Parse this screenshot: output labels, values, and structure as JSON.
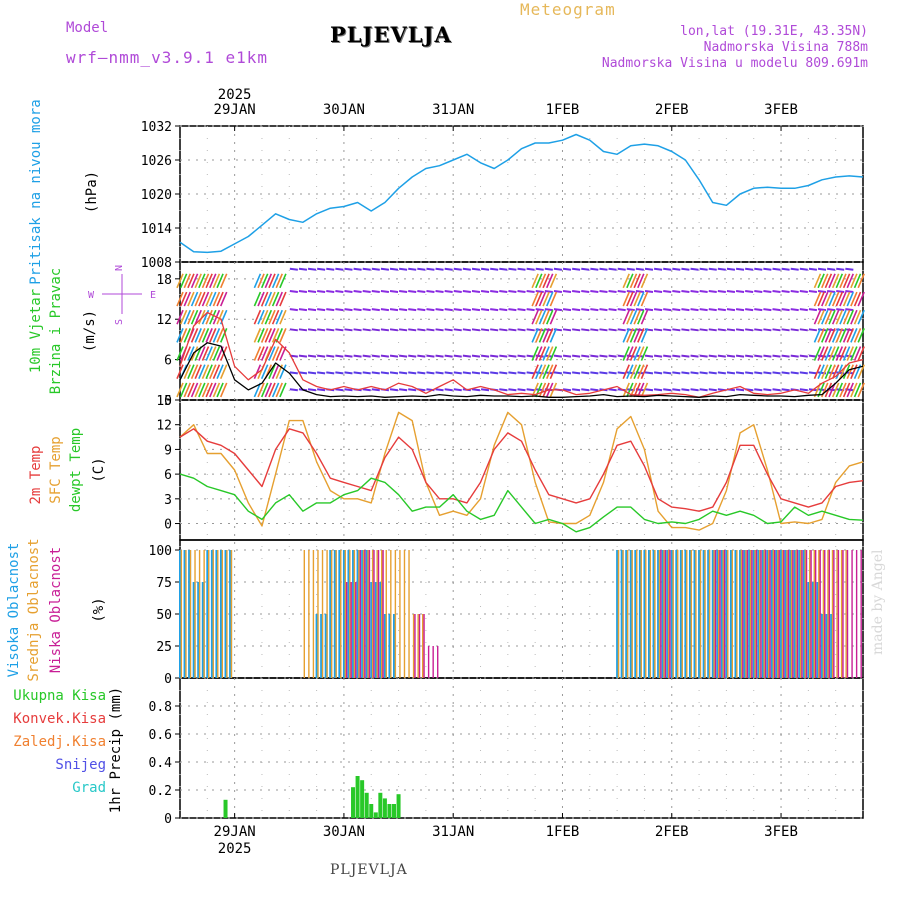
{
  "header": {
    "model_label": "Model",
    "model_name": "wrf–nmm_v3.9.1 e1km",
    "title": "PLJEVLJA",
    "product": "Meteogram",
    "lonlat": "lon,lat (19.31E, 43.35N)",
    "elevation": "Nadmorska Visina 788m",
    "model_elevation": "Nadmorska Visina u modelu 809.691m"
  },
  "footer": {
    "city": "PLJEVLJA",
    "credit": "made by Angel"
  },
  "colors": {
    "pressure": "#1ea0e6",
    "temp2m": "#e63c3c",
    "sfc": "#e6a030",
    "dewpt": "#28c828",
    "high_cloud": "#1ea0e6",
    "mid_cloud": "#e6a030",
    "low_cloud": "#c81e96",
    "precip": "#28c828",
    "wind_speed": "#000000",
    "gust": "#e63c3c",
    "header_purple": "#b04ad8",
    "header_orange": "#e6b85a"
  },
  "time_axis": {
    "year": "2025",
    "days": [
      "29JAN",
      "30JAN",
      "31JAN",
      "1FEB",
      "2FEB",
      "3FEB"
    ],
    "start_hour": 0,
    "end_hour": 150,
    "day_marks_hours": [
      12,
      36,
      60,
      84,
      108,
      132
    ]
  },
  "panels": {
    "pressure": {
      "ylabel_name": "Pritisak na nivou mora",
      "ylabel_unit": "(hPa)",
      "ticks": [
        "1008",
        "1014",
        "1020",
        "1026",
        "1032"
      ],
      "ylim": [
        1008,
        1032
      ]
    },
    "wind": {
      "ylabel_name1": "10m Vjetar",
      "ylabel_name2": "Brzina i Pravac",
      "ylabel_unit": "(m/s)",
      "ticks": [
        "0",
        "6",
        "12",
        "18"
      ],
      "ylim": [
        0,
        20.5
      ],
      "compass": {
        "n": "N",
        "s": "S",
        "w": "W",
        "e": "E"
      }
    },
    "temperature": {
      "ylabel_2m": "2m Temp",
      "ylabel_sfc": "SFC Temp",
      "ylabel_dew": "dewpt Temp",
      "ylabel_unit": "(C)",
      "ticks": [
        "0",
        "3",
        "6",
        "9",
        "12",
        "15"
      ],
      "ylim": [
        -2,
        15
      ]
    },
    "clouds": {
      "ylabel_high": "Visoka Oblacnost",
      "ylabel_mid": "Srednja Oblacnost",
      "ylabel_low": "Niska Oblacnost",
      "ylabel_unit": "(%)",
      "ticks": [
        "0",
        "25",
        "50",
        "75",
        "100"
      ],
      "ylim": [
        0,
        100
      ]
    },
    "precip": {
      "legend": [
        "Ukupna Kisa",
        "Konvek.Kisa",
        "Zaledj.Kisa",
        "Snijeg",
        "Grad"
      ],
      "ylabel": "1hr Precip (mm)",
      "ticks": [
        "0",
        "0.2",
        "0.4",
        "0.6",
        "0.8"
      ],
      "ylim": [
        0,
        1.0
      ]
    }
  },
  "chart_data": [
    {
      "type": "line",
      "name": "pressure",
      "ylim": [
        1008,
        1032
      ],
      "x": [
        0,
        3,
        6,
        9,
        12,
        15,
        18,
        21,
        24,
        27,
        30,
        33,
        36,
        39,
        42,
        45,
        48,
        51,
        54,
        57,
        60,
        63,
        66,
        69,
        72,
        75,
        78,
        81,
        84,
        87,
        90,
        93,
        96,
        99,
        102,
        105,
        108,
        111,
        114,
        117,
        120,
        123,
        126,
        129,
        132,
        135,
        138,
        141,
        144,
        147,
        150
      ],
      "values": [
        1011.5,
        1009.8,
        1009.7,
        1009.9,
        1011.2,
        1012.5,
        1014.5,
        1016.5,
        1015.5,
        1015.0,
        1016.5,
        1017.5,
        1017.8,
        1018.5,
        1017.0,
        1018.5,
        1021.0,
        1023.0,
        1024.5,
        1025.0,
        1026.0,
        1027.0,
        1025.5,
        1024.5,
        1026.0,
        1028.0,
        1029.0,
        1029.0,
        1029.5,
        1030.5,
        1029.5,
        1027.5,
        1027.0,
        1028.5,
        1028.8,
        1028.5,
        1027.5,
        1026.0,
        1022.5,
        1018.5,
        1018.0,
        1020.0,
        1021.0,
        1021.2,
        1021.0,
        1021.0,
        1021.5,
        1022.5,
        1023.0,
        1023.2,
        1023.0
      ]
    },
    {
      "type": "line",
      "name": "wind",
      "ylim": [
        0,
        20.5
      ],
      "x": [
        0,
        3,
        6,
        9,
        12,
        15,
        18,
        21,
        24,
        27,
        30,
        33,
        36,
        39,
        42,
        45,
        48,
        51,
        54,
        57,
        60,
        63,
        66,
        69,
        72,
        75,
        78,
        81,
        84,
        87,
        90,
        93,
        96,
        99,
        102,
        105,
        108,
        111,
        114,
        117,
        120,
        123,
        126,
        129,
        132,
        135,
        138,
        141,
        144,
        147,
        150
      ],
      "series": [
        {
          "name": "speed",
          "values": [
            3.0,
            7.0,
            8.5,
            8.0,
            3.0,
            1.5,
            2.5,
            5.5,
            4.0,
            1.5,
            0.8,
            0.5,
            0.6,
            0.5,
            0.6,
            0.4,
            0.5,
            0.6,
            0.5,
            0.8,
            0.6,
            0.5,
            0.7,
            0.6,
            0.6,
            0.5,
            0.6,
            0.4,
            0.4,
            0.5,
            0.6,
            0.8,
            0.5,
            0.6,
            0.5,
            0.7,
            0.6,
            0.5,
            0.4,
            0.6,
            0.5,
            0.8,
            0.7,
            0.6,
            0.6,
            0.5,
            0.7,
            0.8,
            2.5,
            4.5,
            5.0
          ]
        },
        {
          "name": "gust",
          "values": [
            5.0,
            11.0,
            13.0,
            12.0,
            5.0,
            3.0,
            4.5,
            9.0,
            7.0,
            3.0,
            2.0,
            1.5,
            2.0,
            1.5,
            2.0,
            1.5,
            2.5,
            2.0,
            1.0,
            2.0,
            3.0,
            1.5,
            2.0,
            1.5,
            0.8,
            1.0,
            0.8,
            1.5,
            1.5,
            0.8,
            1.0,
            1.5,
            2.0,
            0.8,
            0.7,
            0.8,
            1.0,
            0.8,
            0.4,
            1.0,
            1.5,
            2.0,
            1.0,
            0.8,
            1.0,
            1.5,
            1.0,
            2.5,
            3.5,
            5.5,
            6.0
          ]
        }
      ]
    },
    {
      "type": "line",
      "name": "temperature",
      "ylim": [
        -2,
        15
      ],
      "x": [
        0,
        3,
        6,
        9,
        12,
        15,
        18,
        21,
        24,
        27,
        30,
        33,
        36,
        39,
        42,
        45,
        48,
        51,
        54,
        57,
        60,
        63,
        66,
        69,
        72,
        75,
        78,
        81,
        84,
        87,
        90,
        93,
        96,
        99,
        102,
        105,
        108,
        111,
        114,
        117,
        120,
        123,
        126,
        129,
        132,
        135,
        138,
        141,
        144,
        147,
        150
      ],
      "series": [
        {
          "name": "2m",
          "values": [
            10.5,
            11.5,
            10.0,
            9.5,
            8.5,
            6.5,
            4.5,
            9.0,
            11.5,
            11.0,
            8.5,
            5.5,
            5.0,
            4.5,
            4.0,
            8.0,
            10.5,
            9.0,
            5.0,
            3.0,
            3.0,
            2.5,
            5.0,
            9.0,
            11.0,
            10.0,
            6.5,
            3.5,
            3.0,
            2.5,
            3.0,
            6.0,
            9.5,
            10.0,
            7.0,
            3.0,
            2.0,
            1.8,
            1.5,
            2.0,
            5.0,
            9.5,
            9.5,
            6.0,
            3.0,
            2.5,
            2.0,
            2.5,
            4.5,
            5.0,
            5.2
          ]
        },
        {
          "name": "sfc",
          "values": [
            10.5,
            12.0,
            8.5,
            8.5,
            6.5,
            2.5,
            -0.3,
            6.0,
            12.5,
            12.5,
            7.5,
            4.0,
            3.0,
            3.0,
            2.5,
            8.5,
            13.5,
            12.5,
            5.0,
            1.0,
            1.5,
            1.0,
            3.0,
            9.5,
            13.5,
            12.0,
            5.0,
            0.2,
            0.0,
            0.0,
            1.0,
            5.0,
            11.5,
            13.0,
            9.0,
            1.5,
            -0.5,
            -0.5,
            -0.8,
            0.0,
            4.0,
            11.0,
            12.0,
            6.5,
            0.0,
            0.2,
            0.0,
            0.5,
            5.0,
            7.0,
            7.5
          ]
        },
        {
          "name": "dewpt",
          "values": [
            6.0,
            5.5,
            4.5,
            4.0,
            3.5,
            1.5,
            0.5,
            2.5,
            3.5,
            1.5,
            2.5,
            2.5,
            3.5,
            4.0,
            5.5,
            5.0,
            3.5,
            1.5,
            2.0,
            2.0,
            3.5,
            1.5,
            0.5,
            1.0,
            4.0,
            2.0,
            0.0,
            0.5,
            0.0,
            -1.0,
            -0.5,
            0.8,
            2.0,
            2.0,
            0.5,
            0.0,
            0.2,
            0.0,
            0.5,
            1.5,
            1.0,
            1.5,
            1.0,
            0.0,
            0.2,
            2.0,
            1.0,
            1.5,
            1.0,
            0.5,
            0.4
          ]
        }
      ]
    },
    {
      "type": "bar",
      "name": "clouds",
      "ylim": [
        0,
        100
      ],
      "x": [
        0,
        3,
        6,
        9,
        12,
        15,
        18,
        21,
        24,
        27,
        30,
        33,
        36,
        39,
        42,
        45,
        48,
        51,
        54,
        57,
        60,
        63,
        66,
        69,
        72,
        75,
        78,
        81,
        84,
        87,
        90,
        93,
        96,
        99,
        102,
        105,
        108,
        111,
        114,
        117,
        120,
        123,
        126,
        129,
        132,
        135,
        138,
        141,
        144,
        147,
        150
      ],
      "series": [
        {
          "name": "high",
          "values": [
            100,
            75,
            100,
            100,
            0,
            0,
            0,
            0,
            0,
            0,
            50,
            100,
            100,
            100,
            75,
            50,
            0,
            0,
            0,
            0,
            0,
            0,
            0,
            0,
            0,
            0,
            0,
            0,
            0,
            0,
            0,
            0,
            100,
            100,
            100,
            100,
            100,
            100,
            100,
            100,
            100,
            100,
            100,
            100,
            100,
            100,
            75,
            50,
            0,
            0,
            0
          ]
        },
        {
          "name": "mid",
          "values": [
            100,
            100,
            100,
            100,
            0,
            0,
            0,
            0,
            0,
            100,
            100,
            100,
            100,
            100,
            100,
            100,
            100,
            50,
            0,
            0,
            0,
            0,
            0,
            0,
            0,
            0,
            0,
            0,
            0,
            0,
            0,
            0,
            100,
            100,
            100,
            100,
            100,
            100,
            100,
            100,
            100,
            100,
            100,
            100,
            100,
            100,
            100,
            100,
            100,
            0,
            0
          ]
        },
        {
          "name": "low",
          "values": [
            0,
            0,
            0,
            0,
            0,
            0,
            0,
            0,
            0,
            0,
            0,
            0,
            75,
            100,
            100,
            0,
            0,
            50,
            25,
            0,
            0,
            0,
            0,
            0,
            0,
            0,
            0,
            0,
            0,
            0,
            0,
            0,
            0,
            0,
            0,
            100,
            0,
            0,
            0,
            100,
            0,
            100,
            100,
            100,
            100,
            100,
            100,
            100,
            100,
            100,
            0
          ]
        }
      ]
    },
    {
      "type": "bar",
      "name": "precip",
      "ylim": [
        0,
        1.0
      ],
      "x": [
        10,
        38,
        39,
        40,
        41,
        42,
        43,
        44,
        45,
        46,
        47,
        48
      ],
      "values": [
        0.13,
        0.22,
        0.3,
        0.27,
        0.18,
        0.1,
        0.04,
        0.18,
        0.14,
        0.1,
        0.1,
        0.17
      ]
    }
  ]
}
